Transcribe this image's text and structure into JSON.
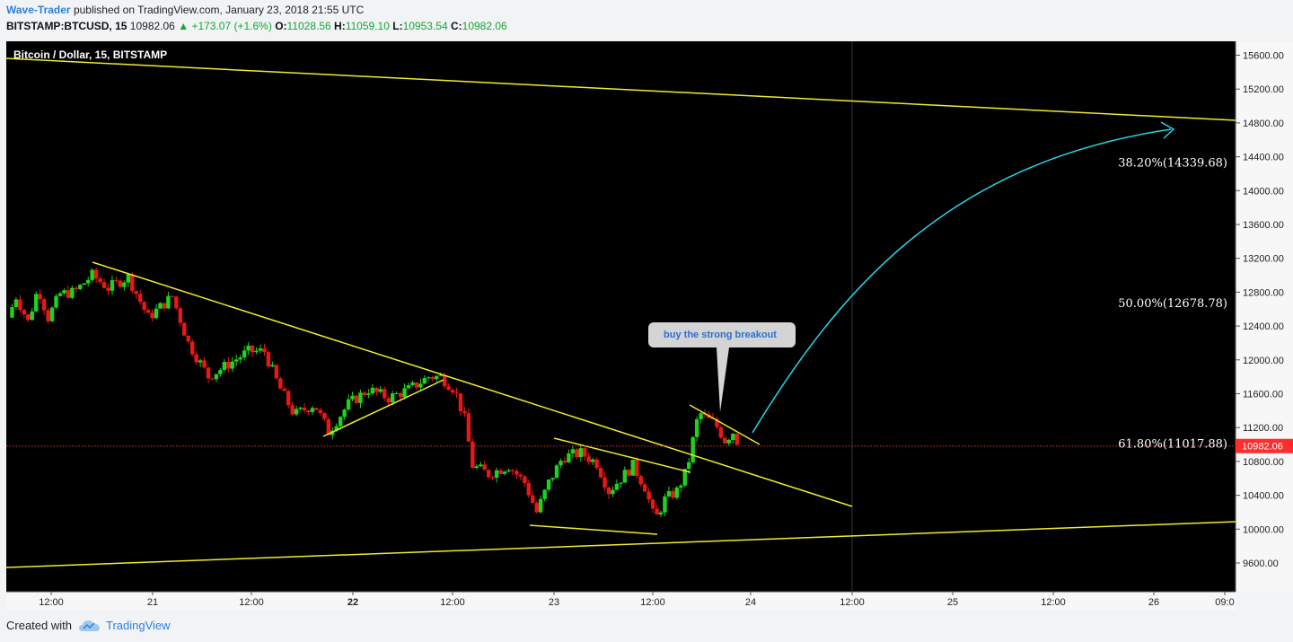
{
  "header": {
    "author": "Wave-Trader",
    "published_text": "published on TradingView.com, January 23, 2018 21:55 UTC",
    "symbol": "BITSTAMP:BTCUSD, 15",
    "last": "10982.06",
    "arrow": "▲",
    "change": "+173.07 (+1.6%)",
    "o_label": "O:",
    "o_value": "11028.56",
    "h_label": "H:",
    "h_value": "11059.10",
    "l_label": "L:",
    "l_value": "10953.54",
    "c_label": "C:",
    "c_value": "10982.06"
  },
  "footer": {
    "created_with": "Created with",
    "brand": "TradingView"
  },
  "colors": {
    "up": "#22d022",
    "down": "#e81818",
    "trendline": "#f2ea2c",
    "arrow": "#29d4e6",
    "price_line": "#ff2a2a",
    "background": "#000000"
  },
  "chart_data": {
    "type": "candlestick",
    "title": "Bitcoin / Dollar, 15, BITSTAMP",
    "x_tick_labels": [
      "12:00",
      "21",
      "12:00",
      "22",
      "12:00",
      "23",
      "12:00",
      "24",
      "12:00",
      "25",
      "12:00",
      "26",
      "09:0"
    ],
    "y_tick_labels": [
      "15600.00",
      "15200.00",
      "14800.00",
      "14400.00",
      "14000.00",
      "13600.00",
      "13200.00",
      "12800.00",
      "12400.00",
      "12000.00",
      "11600.00",
      "11200.00",
      "10800.00",
      "10400.00",
      "10000.00",
      "9600.00"
    ],
    "ylim": [
      9200,
      15800
    ],
    "last_price": 10982.06,
    "last_price_label": "10982.06",
    "fib_levels": [
      {
        "label": "38.20%(14339.68)",
        "value": 14339.68
      },
      {
        "label": "50.00%(12678.78)",
        "value": 12678.78
      },
      {
        "label": "61.80%(11017.88)",
        "value": 11017.88
      }
    ],
    "annotation": "buy the strong breakout",
    "price_path": [
      {
        "t": 0,
        "p": 12500
      },
      {
        "t": 0.4,
        "p": 12750
      },
      {
        "t": 1.0,
        "p": 12450
      },
      {
        "t": 1.5,
        "p": 12850
      },
      {
        "t": 2.0,
        "p": 12500
      },
      {
        "t": 2.6,
        "p": 12780
      },
      {
        "t": 3.3,
        "p": 12800
      },
      {
        "t": 4.2,
        "p": 13000
      },
      {
        "t": 5.0,
        "p": 12850
      },
      {
        "t": 6.0,
        "p": 12980
      },
      {
        "t": 7.0,
        "p": 12500
      },
      {
        "t": 8.2,
        "p": 12750
      },
      {
        "t": 9.0,
        "p": 12200
      },
      {
        "t": 10.0,
        "p": 11800
      },
      {
        "t": 11.0,
        "p": 11950
      },
      {
        "t": 12.0,
        "p": 12100
      },
      {
        "t": 12.8,
        "p": 12100
      },
      {
        "t": 13.5,
        "p": 11700
      },
      {
        "t": 14.3,
        "p": 11350
      },
      {
        "t": 15.3,
        "p": 11480
      },
      {
        "t": 16.0,
        "p": 11150
      },
      {
        "t": 17.0,
        "p": 11480
      },
      {
        "t": 18.0,
        "p": 11650
      },
      {
        "t": 19.0,
        "p": 11550
      },
      {
        "t": 20.0,
        "p": 11650
      },
      {
        "t": 21.0,
        "p": 11800
      },
      {
        "t": 21.6,
        "p": 11800
      },
      {
        "t": 22.3,
        "p": 11650
      },
      {
        "t": 22.8,
        "p": 11300
      },
      {
        "t": 23.2,
        "p": 10750
      },
      {
        "t": 24.0,
        "p": 10650
      },
      {
        "t": 25.0,
        "p": 10750
      },
      {
        "t": 25.8,
        "p": 10550
      },
      {
        "t": 26.4,
        "p": 10200
      },
      {
        "t": 27.0,
        "p": 10550
      },
      {
        "t": 27.7,
        "p": 10850
      },
      {
        "t": 28.6,
        "p": 10900
      },
      {
        "t": 29.4,
        "p": 10780
      },
      {
        "t": 30.0,
        "p": 10450
      },
      {
        "t": 30.6,
        "p": 10600
      },
      {
        "t": 31.2,
        "p": 10750
      },
      {
        "t": 31.8,
        "p": 10500
      },
      {
        "t": 32.3,
        "p": 10100
      },
      {
        "t": 32.8,
        "p": 10350
      },
      {
        "t": 33.4,
        "p": 10450
      },
      {
        "t": 33.9,
        "p": 10700
      },
      {
        "t": 34.2,
        "p": 11050
      },
      {
        "t": 34.5,
        "p": 11380
      },
      {
        "t": 34.9,
        "p": 11300
      },
      {
        "t": 35.3,
        "p": 11250
      },
      {
        "t": 35.8,
        "p": 11050
      },
      {
        "t": 36.2,
        "p": 11150
      },
      {
        "t": 36.5,
        "p": 10990
      }
    ]
  }
}
